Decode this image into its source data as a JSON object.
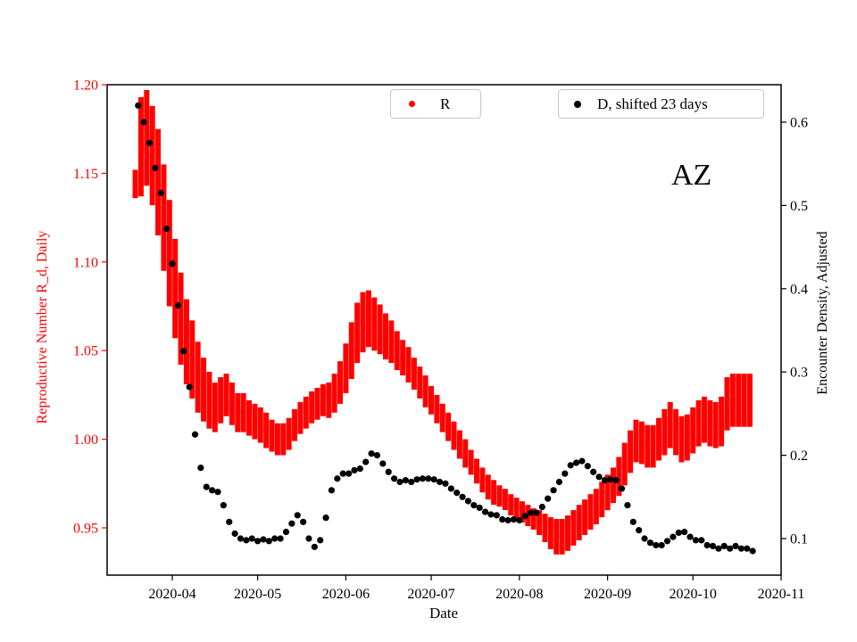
{
  "chart_data": {
    "type": "scatter",
    "title": "",
    "annotation": "AZ",
    "grid": false,
    "legend_position": "top",
    "x_axis": {
      "label": "Date",
      "ticks": [
        {
          "date": "2020-04-01",
          "label": "2020-04"
        },
        {
          "date": "2020-05-01",
          "label": "2020-05"
        },
        {
          "date": "2020-06-01",
          "label": "2020-06"
        },
        {
          "date": "2020-07-01",
          "label": "2020-07"
        },
        {
          "date": "2020-08-01",
          "label": "2020-08"
        },
        {
          "date": "2020-09-01",
          "label": "2020-09"
        },
        {
          "date": "2020-10-01",
          "label": "2020-10"
        },
        {
          "date": "2020-11-01",
          "label": "2020-11"
        }
      ]
    },
    "axes_left": {
      "label": "Reproductive Number R_d, Daily",
      "color": "#ff0000",
      "ylim": [
        0.923,
        1.2
      ],
      "ticks": [
        {
          "value": 0.95,
          "label": "0.95"
        },
        {
          "value": 1.0,
          "label": "1.00"
        },
        {
          "value": 1.05,
          "label": "1.05"
        },
        {
          "value": 1.1,
          "label": "1.10"
        },
        {
          "value": 1.15,
          "label": "1.15"
        },
        {
          "value": 1.2,
          "label": "1.20"
        }
      ]
    },
    "axes_right": {
      "label": "Encounter Density, Adjusted",
      "color": "#000000",
      "ylim": [
        0.056,
        0.645
      ],
      "ticks": [
        {
          "value": 0.1,
          "label": "0.1"
        },
        {
          "value": 0.2,
          "label": "0.2"
        },
        {
          "value": 0.3,
          "label": "0.3"
        },
        {
          "value": 0.4,
          "label": "0.4"
        },
        {
          "value": 0.5,
          "label": "0.5"
        },
        {
          "value": 0.6,
          "label": "0.6"
        }
      ]
    },
    "legend": [
      {
        "label": "R",
        "color": "#ff0000"
      },
      {
        "label": "D, shifted 23 days",
        "color": "#000000"
      }
    ],
    "series": [
      {
        "name": "R",
        "axis": "left",
        "color": "#ff0000",
        "marker": "circle",
        "start": "2020-03-19",
        "step_days": 2,
        "values": [
          1.144,
          1.165,
          1.17,
          1.16,
          1.145,
          1.125,
          1.105,
          1.085,
          1.068,
          1.055,
          1.045,
          1.035,
          1.028,
          1.022,
          1.018,
          1.022,
          1.025,
          1.02,
          1.015,
          1.015,
          1.012,
          1.01,
          1.008,
          1.005,
          1.002,
          1.0,
          1.0,
          1.003,
          1.008,
          1.012,
          1.015,
          1.018,
          1.02,
          1.022,
          1.022,
          1.026,
          1.032,
          1.04,
          1.05,
          1.06,
          1.066,
          1.068,
          1.065,
          1.062,
          1.058,
          1.055,
          1.05,
          1.046,
          1.042,
          1.037,
          1.032,
          1.027,
          1.022,
          1.017,
          1.012,
          1.007,
          1.002,
          0.997,
          0.992,
          0.987,
          0.982,
          0.977,
          0.973,
          0.97,
          0.968,
          0.966,
          0.963,
          0.961,
          0.959,
          0.957,
          0.955,
          0.953,
          0.95,
          0.947,
          0.945,
          0.945,
          0.947,
          0.95,
          0.953,
          0.956,
          0.959,
          0.962,
          0.966,
          0.97,
          0.974,
          0.979,
          0.986,
          0.993,
          0.999,
          0.998,
          0.996,
          0.996,
          1.0,
          1.004,
          1.008,
          1.004,
          1.0,
          1.001,
          1.005,
          1.009,
          1.011,
          1.009,
          1.008,
          1.01,
          1.02,
          1.022,
          1.022,
          1.022,
          1.022
        ],
        "errors": [
          0.008,
          0.028,
          0.027,
          0.028,
          0.03,
          0.03,
          0.03,
          0.028,
          0.026,
          0.024,
          0.022,
          0.02,
          0.018,
          0.016,
          0.014,
          0.013,
          0.012,
          0.012,
          0.011,
          0.011,
          0.01,
          0.01,
          0.01,
          0.01,
          0.009,
          0.009,
          0.009,
          0.009,
          0.009,
          0.009,
          0.009,
          0.009,
          0.009,
          0.009,
          0.01,
          0.011,
          0.012,
          0.014,
          0.016,
          0.017,
          0.017,
          0.016,
          0.015,
          0.014,
          0.013,
          0.012,
          0.011,
          0.01,
          0.01,
          0.009,
          0.009,
          0.009,
          0.008,
          0.008,
          0.008,
          0.008,
          0.008,
          0.008,
          0.008,
          0.007,
          0.007,
          0.007,
          0.007,
          0.007,
          0.006,
          0.006,
          0.006,
          0.006,
          0.006,
          0.006,
          0.006,
          0.007,
          0.008,
          0.009,
          0.01,
          0.01,
          0.01,
          0.01,
          0.01,
          0.01,
          0.01,
          0.01,
          0.01,
          0.01,
          0.01,
          0.011,
          0.012,
          0.012,
          0.012,
          0.012,
          0.012,
          0.012,
          0.012,
          0.013,
          0.013,
          0.013,
          0.013,
          0.013,
          0.013,
          0.013,
          0.013,
          0.013,
          0.013,
          0.014,
          0.015,
          0.015,
          0.015,
          0.015,
          0.015
        ]
      },
      {
        "name": "D, shifted 23 days",
        "axis": "right",
        "color": "#000000",
        "marker": "circle",
        "start": "2020-03-20",
        "step_days": 2,
        "values": [
          0.62,
          0.6,
          0.575,
          0.545,
          0.515,
          0.472,
          0.43,
          0.38,
          0.325,
          0.282,
          0.225,
          0.185,
          0.162,
          0.158,
          0.156,
          0.14,
          0.12,
          0.106,
          0.1,
          0.098,
          0.1,
          0.097,
          0.099,
          0.097,
          0.1,
          0.1,
          0.108,
          0.118,
          0.128,
          0.12,
          0.1,
          0.09,
          0.098,
          0.125,
          0.158,
          0.172,
          0.178,
          0.178,
          0.182,
          0.184,
          0.192,
          0.202,
          0.2,
          0.19,
          0.18,
          0.172,
          0.168,
          0.17,
          0.168,
          0.171,
          0.172,
          0.172,
          0.171,
          0.168,
          0.166,
          0.16,
          0.155,
          0.15,
          0.145,
          0.14,
          0.137,
          0.132,
          0.129,
          0.128,
          0.123,
          0.122,
          0.123,
          0.122,
          0.127,
          0.131,
          0.131,
          0.138,
          0.148,
          0.158,
          0.168,
          0.178,
          0.188,
          0.191,
          0.193,
          0.187,
          0.18,
          0.174,
          0.17,
          0.171,
          0.17,
          0.16,
          0.14,
          0.12,
          0.11,
          0.1,
          0.095,
          0.092,
          0.092,
          0.097,
          0.102,
          0.107,
          0.108,
          0.102,
          0.098,
          0.098,
          0.092,
          0.091,
          0.088,
          0.091,
          0.088,
          0.091,
          0.088,
          0.088,
          0.085
        ]
      }
    ]
  }
}
